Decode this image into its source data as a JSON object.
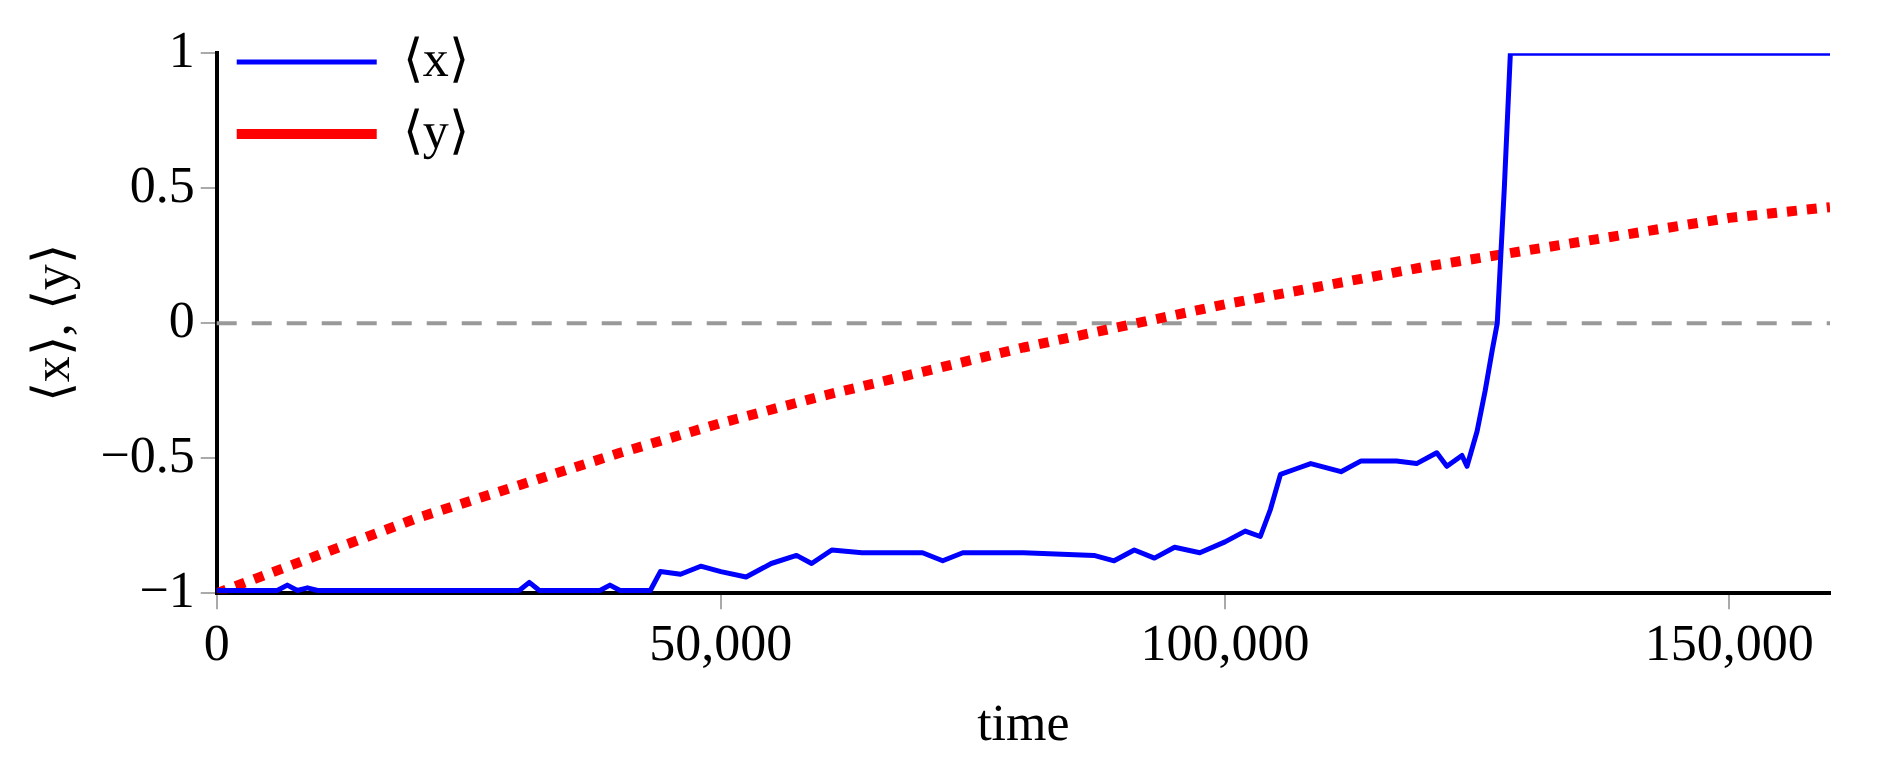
{
  "chart_data": {
    "type": "line",
    "xlabel": "time",
    "ylabel": "⟨x⟩, ⟨y⟩",
    "xlim": [
      0,
      160000
    ],
    "xticks": [
      0,
      {
        "value": 50000,
        "label": "50,000"
      },
      {
        "value": 100000,
        "label": "100,000"
      },
      {
        "value": 150000,
        "label": "150,000"
      }
    ],
    "ylim": [
      -1,
      1
    ],
    "yticks": [
      {
        "value": -1,
        "label": "−1"
      },
      {
        "value": -0.5,
        "label": "−0.5"
      },
      0,
      0.5,
      1
    ],
    "grid": false,
    "legend": "top left",
    "marker": "none",
    "ref_lines": [
      {
        "axis": "y",
        "value": 0,
        "label": null,
        "color": "#999999",
        "line_style": "dashed"
      }
    ],
    "series": [
      {
        "name": "⟨x⟩",
        "color": "#0000ff",
        "line_style": "solid",
        "x": [
          0,
          6000,
          7000,
          8000,
          9000,
          10000,
          30000,
          31000,
          32000,
          38000,
          39000,
          40000,
          43000,
          44000,
          46000,
          48000,
          50000,
          52500,
          55000,
          57500,
          59000,
          61000,
          64000,
          70000,
          72000,
          74000,
          80000,
          87000,
          89000,
          91000,
          93000,
          95000,
          97500,
          100000,
          102000,
          103500,
          104500,
          105500,
          107000,
          108500,
          111500,
          113500,
          117000,
          119000,
          121000,
          122000,
          123500,
          124000,
          125000,
          125800,
          126500,
          127000,
          127700,
          128300,
          130000,
          160000
        ],
        "values": [
          -0.99,
          -0.99,
          -0.97,
          -0.99,
          -0.98,
          -0.99,
          -0.99,
          -0.96,
          -0.99,
          -0.99,
          -0.97,
          -0.99,
          -0.99,
          -0.92,
          -0.93,
          -0.9,
          -0.92,
          -0.94,
          -0.89,
          -0.86,
          -0.89,
          -0.84,
          -0.85,
          -0.85,
          -0.88,
          -0.85,
          -0.85,
          -0.86,
          -0.88,
          -0.84,
          -0.87,
          -0.83,
          -0.85,
          -0.81,
          -0.77,
          -0.79,
          -0.69,
          -0.56,
          -0.54,
          -0.52,
          -0.55,
          -0.51,
          -0.51,
          -0.52,
          -0.48,
          -0.53,
          -0.49,
          -0.53,
          -0.4,
          -0.25,
          -0.1,
          0,
          0.5,
          1,
          1,
          1
        ]
      },
      {
        "name": "⟨y⟩",
        "color": "#ff0000",
        "line_style": "dotted",
        "x": [
          0,
          10000,
          20000,
          30000,
          40000,
          50000,
          60000,
          70000,
          80000,
          90000,
          100000,
          110000,
          120000,
          130000,
          140000,
          150000,
          160000
        ],
        "values": [
          -1,
          -0.86,
          -0.72,
          -0.6,
          -0.48,
          -0.37,
          -0.27,
          -0.18,
          -0.09,
          -0.01,
          0.07,
          0.14,
          0.21,
          0.27,
          0.33,
          0.39,
          0.43
        ]
      }
    ]
  }
}
